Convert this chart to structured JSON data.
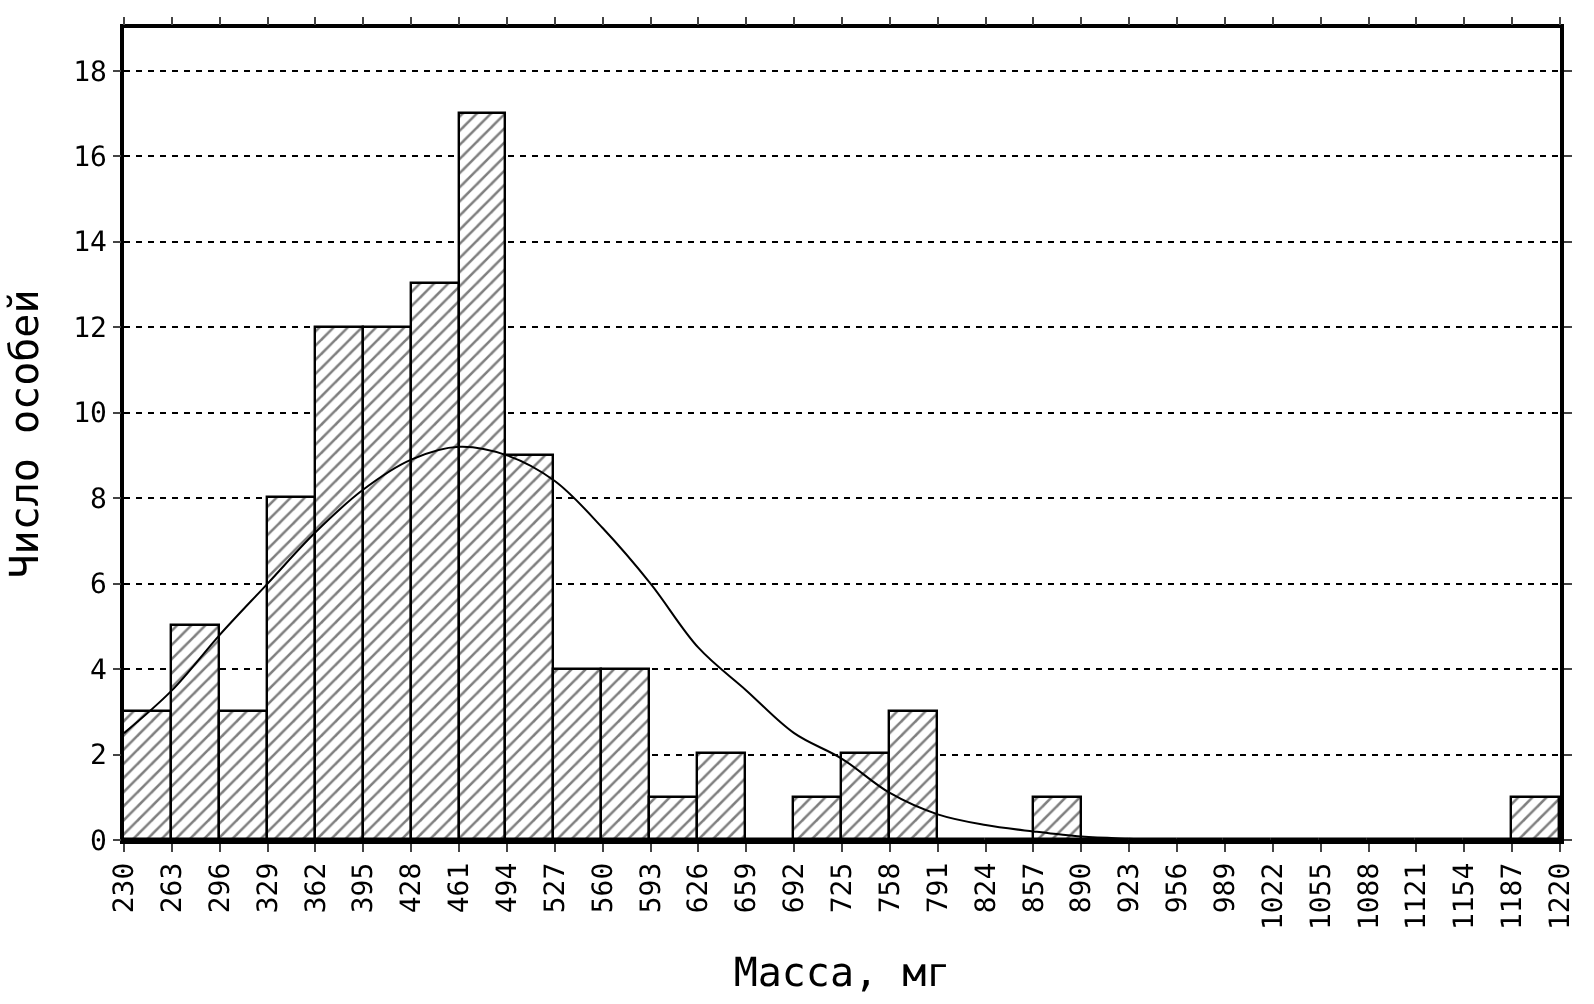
{
  "chart_data": {
    "type": "histogram",
    "xlabel": "Масса, мг",
    "ylabel": "Число особей",
    "bins": [
      230,
      263,
      296,
      329,
      362,
      395,
      428,
      461,
      494,
      527,
      560,
      593,
      626,
      659,
      692,
      725,
      758,
      791,
      824,
      857,
      890,
      923,
      956,
      989,
      1022,
      1055,
      1088,
      1121,
      1154,
      1187,
      1220
    ],
    "values": [
      3,
      5,
      3,
      8,
      12,
      12,
      13,
      17,
      9,
      4,
      4,
      1,
      2,
      0,
      1,
      2,
      3,
      0,
      0,
      1,
      0,
      0,
      0,
      0,
      0,
      0,
      0,
      0,
      0,
      1
    ],
    "color": "#000000",
    "xlim": [
      230,
      1220
    ],
    "xticks": [
      230,
      263,
      296,
      329,
      362,
      395,
      428,
      461,
      494,
      527,
      560,
      593,
      626,
      659,
      692,
      725,
      758,
      791,
      824,
      857,
      890,
      923,
      956,
      989,
      1022,
      1055,
      1088,
      1121,
      1154,
      1187,
      1220
    ],
    "ylim": [
      0,
      19
    ],
    "yticks": [
      0,
      2,
      4,
      6,
      8,
      10,
      12,
      14,
      16,
      18
    ],
    "grid": "y",
    "series": [
      {
        "type": "line",
        "color": "#000000",
        "line_style": "solid",
        "marker": "none",
        "x": [
          230,
          263,
          296,
          329,
          362,
          395,
          428,
          461,
          494,
          527,
          560,
          593,
          626,
          659,
          692,
          725,
          758,
          791,
          824,
          857,
          890,
          923,
          956
        ],
        "values": [
          2.5,
          3.5,
          4.8,
          6.0,
          7.2,
          8.2,
          8.9,
          9.2,
          9.0,
          8.4,
          7.3,
          6.0,
          4.5,
          3.5,
          2.5,
          1.9,
          1.1,
          0.6,
          0.35,
          0.2,
          0.08,
          0.03,
          0.0
        ]
      }
    ]
  }
}
